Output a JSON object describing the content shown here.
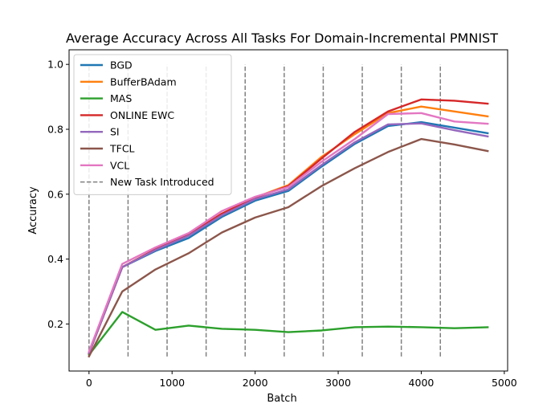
{
  "chart_data": {
    "type": "line",
    "title": "Average Accuracy Across All Tasks For Domain-Incremental PMNIST",
    "xlabel": "Batch",
    "ylabel": "Accuracy",
    "xlim": [
      -240,
      5040
    ],
    "ylim": [
      0.055,
      1.045
    ],
    "xticks": [
      0,
      1000,
      2000,
      3000,
      4000,
      5000
    ],
    "xtick_labels": [
      "0",
      "1000",
      "2000",
      "3000",
      "4000",
      "5000"
    ],
    "yticks": [
      0.2,
      0.4,
      0.6,
      0.8,
      1.0
    ],
    "ytick_labels": [
      "0.2",
      "0.4",
      "0.6",
      "0.8",
      "1.0"
    ],
    "grid": false,
    "legend_position": "top-left",
    "x": [
      0,
      400,
      800,
      1200,
      1600,
      2000,
      2400,
      2800,
      3200,
      3600,
      4000,
      4400,
      4800
    ],
    "series": [
      {
        "name": "BGD",
        "color": "#1f77b4",
        "values": [
          0.11,
          0.375,
          0.425,
          0.465,
          0.53,
          0.58,
          0.61,
          0.685,
          0.755,
          0.81,
          0.822,
          0.805,
          0.788
        ]
      },
      {
        "name": "BufferBAdam",
        "color": "#ff7f0e",
        "values": [
          0.11,
          0.375,
          0.43,
          0.475,
          0.54,
          0.59,
          0.628,
          0.715,
          0.785,
          0.85,
          0.87,
          0.855,
          0.84
        ]
      },
      {
        "name": "MAS",
        "color": "#2ca02c",
        "values": [
          0.105,
          0.237,
          0.182,
          0.195,
          0.185,
          0.182,
          0.175,
          0.18,
          0.19,
          0.192,
          0.19,
          0.187,
          0.19
        ]
      },
      {
        "name": "ONLINE EWC",
        "color": "#d62728",
        "values": [
          0.11,
          0.375,
          0.43,
          0.475,
          0.54,
          0.59,
          0.625,
          0.71,
          0.792,
          0.855,
          0.892,
          0.888,
          0.879
        ]
      },
      {
        "name": "SI",
        "color": "#9467bd",
        "values": [
          0.11,
          0.375,
          0.428,
          0.472,
          0.535,
          0.585,
          0.615,
          0.69,
          0.76,
          0.815,
          0.818,
          0.797,
          0.778
        ]
      },
      {
        "name": "TFCL",
        "color": "#8c564b",
        "values": [
          0.1,
          0.3,
          0.368,
          0.418,
          0.482,
          0.528,
          0.56,
          0.625,
          0.68,
          0.73,
          0.77,
          0.753,
          0.733
        ]
      },
      {
        "name": "VCL",
        "color": "#e377c2",
        "values": [
          0.115,
          0.385,
          0.436,
          0.48,
          0.548,
          0.592,
          0.622,
          0.7,
          0.77,
          0.847,
          0.85,
          0.824,
          0.817
        ]
      }
    ],
    "new_task_markers": {
      "name": "New Task Introduced",
      "color": "#808080",
      "x": [
        0,
        470,
        940,
        1410,
        1880,
        2350,
        2820,
        3290,
        3760,
        4230
      ],
      "y_range": [
        0.1,
        1.0
      ]
    }
  }
}
